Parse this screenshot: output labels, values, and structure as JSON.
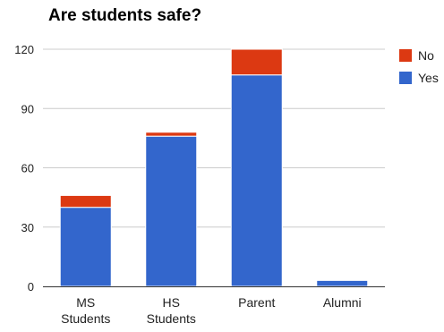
{
  "chart_data": {
    "type": "bar",
    "stacked": true,
    "title": "Are students safe?",
    "categories": [
      [
        "MS",
        "Students"
      ],
      [
        "HS",
        "Students"
      ],
      [
        "Parent"
      ],
      [
        "Alumni"
      ]
    ],
    "series": [
      {
        "name": "Yes",
        "color": "#3366cc",
        "values": [
          40,
          76,
          107,
          3
        ]
      },
      {
        "name": "No",
        "color": "#dc3912",
        "values": [
          6,
          2,
          13,
          0
        ]
      }
    ],
    "ylim": [
      0,
      120
    ],
    "yticks": [
      "0",
      "30",
      "60",
      "90",
      "120"
    ],
    "grid": true,
    "legend": "right",
    "legend_order": [
      "No",
      "Yes"
    ]
  }
}
